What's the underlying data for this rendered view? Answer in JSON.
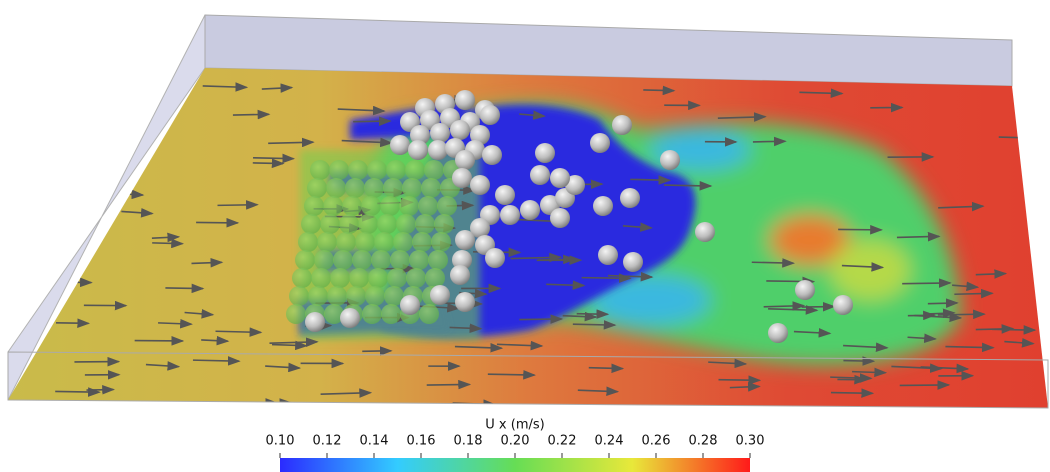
{
  "colorbar": {
    "title": "U x (m/s)",
    "lim": [
      0.1,
      0.3
    ],
    "ticks": [
      {
        "value": 0.1,
        "label": "0.10"
      },
      0.12,
      0.14,
      0.16,
      0.18,
      {
        "value": 0.2,
        "label": "0.20"
      },
      0.22,
      0.24,
      0.26,
      0.28,
      {
        "value": 0.3,
        "label": "0.30"
      }
    ],
    "colors": [
      "#2b2bff",
      "#33ccff",
      "#66dd55",
      "#e8e83a",
      "#ff1a1a"
    ]
  }
}
